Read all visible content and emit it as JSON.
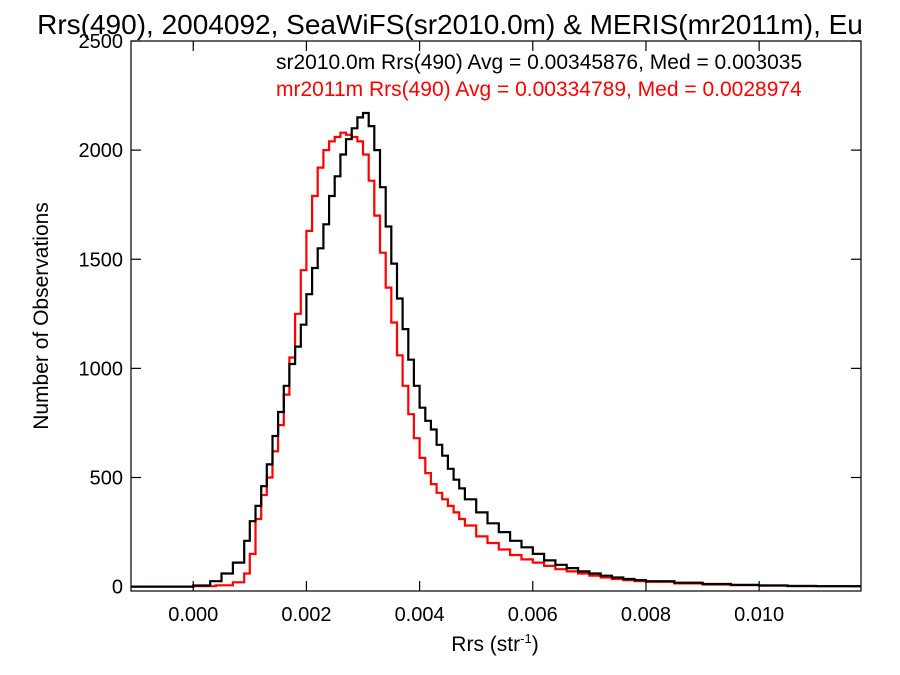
{
  "chart_data": {
    "type": "line",
    "title": "Rrs(490), 2004092, SeaWiFS(sr2010.0m) & MERIS(mr2011m), Eu",
    "xlabel": "Rrs (str",
    "xlabel_sup": "-1",
    "xlabel_close": ")",
    "ylabel": "Number of Observations",
    "xlim": [
      -0.0011,
      0.0118
    ],
    "ylim": [
      -20,
      2500
    ],
    "xticks": [
      0.0,
      0.002,
      0.004,
      0.006,
      0.008,
      0.01
    ],
    "xtick_labels": [
      "0.000",
      "0.002",
      "0.004",
      "0.006",
      "0.008",
      "0.010"
    ],
    "yticks": [
      0,
      500,
      1000,
      1500,
      2000,
      2500
    ],
    "ytick_labels": [
      "0",
      "500",
      "1000",
      "1500",
      "2000",
      "2500"
    ],
    "grid": false,
    "annotations": [
      {
        "text": "sr2010.0m Rrs(490) Avg = 0.00345876, Med = 0.003035",
        "color": "#000000"
      },
      {
        "text": "mr2011m Rrs(490) Avg = 0.00334789, Med = 0.0028974",
        "color": "#ff0000"
      }
    ],
    "series": [
      {
        "name": "sr2010.0m",
        "color": "#000000",
        "x": [
          -0.0011,
          -0.0005,
          0.0,
          0.0003,
          0.0005,
          0.0007,
          0.0009,
          0.001,
          0.0011,
          0.0012,
          0.0013,
          0.0014,
          0.0015,
          0.0016,
          0.0017,
          0.0018,
          0.0019,
          0.002,
          0.0021,
          0.0022,
          0.0023,
          0.0024,
          0.0025,
          0.0026,
          0.0027,
          0.0028,
          0.0029,
          0.003,
          0.0031,
          0.0032,
          0.0033,
          0.0034,
          0.0035,
          0.0036,
          0.0037,
          0.0038,
          0.0039,
          0.004,
          0.0041,
          0.0042,
          0.0043,
          0.0044,
          0.0045,
          0.0046,
          0.0047,
          0.0048,
          0.005,
          0.0052,
          0.0054,
          0.0056,
          0.0058,
          0.006,
          0.0062,
          0.0064,
          0.0066,
          0.0068,
          0.007,
          0.0072,
          0.0074,
          0.0076,
          0.0078,
          0.008,
          0.0085,
          0.009,
          0.0095,
          0.01,
          0.0105,
          0.011,
          0.0118
        ],
        "y": [
          0,
          0,
          5,
          25,
          60,
          110,
          210,
          300,
          370,
          460,
          560,
          690,
          800,
          920,
          1020,
          1100,
          1200,
          1340,
          1460,
          1550,
          1660,
          1790,
          1880,
          1980,
          2050,
          2100,
          2150,
          2170,
          2110,
          2000,
          1830,
          1650,
          1480,
          1320,
          1180,
          1040,
          920,
          820,
          760,
          720,
          650,
          600,
          540,
          490,
          450,
          400,
          340,
          290,
          250,
          210,
          180,
          150,
          120,
          100,
          85,
          70,
          60,
          50,
          42,
          35,
          30,
          25,
          18,
          12,
          8,
          5,
          3,
          2,
          0
        ]
      },
      {
        "name": "mr2011m",
        "color": "#ff0000",
        "x": [
          -0.0011,
          -0.0005,
          0.0,
          0.0004,
          0.0007,
          0.0009,
          0.001,
          0.0011,
          0.0012,
          0.0013,
          0.0014,
          0.0015,
          0.0016,
          0.0017,
          0.0018,
          0.0019,
          0.002,
          0.0021,
          0.0022,
          0.0023,
          0.0024,
          0.0025,
          0.0026,
          0.0027,
          0.0028,
          0.0029,
          0.003,
          0.0031,
          0.0032,
          0.0033,
          0.0034,
          0.0035,
          0.0036,
          0.0037,
          0.0038,
          0.0039,
          0.004,
          0.0041,
          0.0042,
          0.0043,
          0.0044,
          0.0045,
          0.0046,
          0.0047,
          0.0048,
          0.005,
          0.0052,
          0.0054,
          0.0056,
          0.0058,
          0.006,
          0.0062,
          0.0064,
          0.0066,
          0.0068,
          0.007,
          0.0072,
          0.0074,
          0.0076,
          0.0078,
          0.008,
          0.0085,
          0.009,
          0.0095,
          0.01,
          0.0105,
          0.011,
          0.0118
        ],
        "y": [
          0,
          0,
          2,
          6,
          20,
          60,
          150,
          310,
          420,
          500,
          620,
          740,
          880,
          1050,
          1250,
          1450,
          1630,
          1790,
          1920,
          2000,
          2040,
          2060,
          2080,
          2070,
          2060,
          2040,
          1980,
          1860,
          1700,
          1530,
          1370,
          1210,
          1060,
          920,
          790,
          680,
          590,
          520,
          470,
          430,
          400,
          370,
          340,
          310,
          280,
          230,
          200,
          170,
          145,
          125,
          110,
          95,
          80,
          70,
          60,
          50,
          42,
          35,
          30,
          25,
          22,
          15,
          10,
          7,
          5,
          3,
          2,
          0
        ]
      }
    ]
  }
}
